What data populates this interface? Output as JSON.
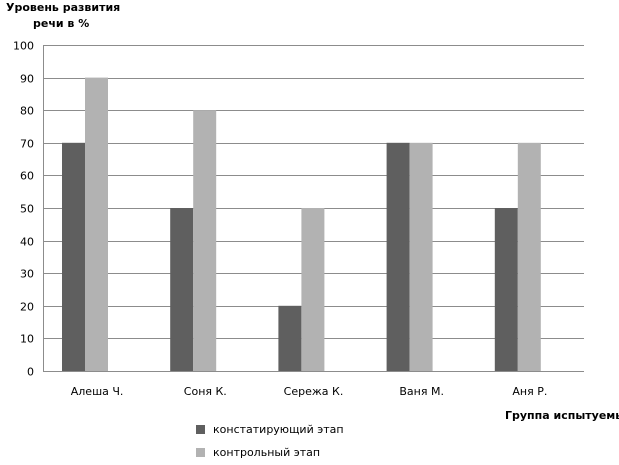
{
  "chart_data": {
    "type": "bar",
    "ylabel_lines": [
      "Уровень развития",
      "речи в %"
    ],
    "xlabel": "Группа испытуемых",
    "categories": [
      "Алеша Ч.",
      "Соня К.",
      "Сережа К.",
      "Ваня М.",
      "Аня Р."
    ],
    "series": [
      {
        "name": "констатирующий этап",
        "values": [
          70,
          50,
          20,
          70,
          50
        ],
        "color": "#5f5f5f"
      },
      {
        "name": "контрольный этап",
        "values": [
          90,
          80,
          50,
          70,
          70
        ],
        "color": "#b2b2b2"
      }
    ],
    "ylim": [
      0,
      100
    ],
    "yticks": [
      0,
      10,
      20,
      30,
      40,
      50,
      60,
      70,
      80,
      90,
      100
    ],
    "grid": true,
    "legend_position": "bottom"
  }
}
